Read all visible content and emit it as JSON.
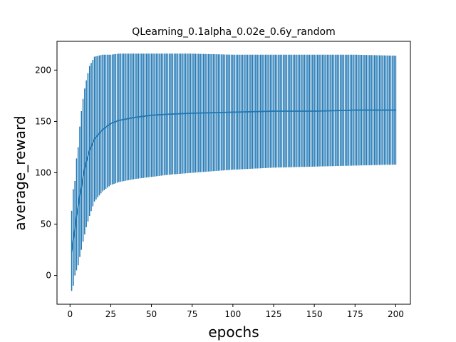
{
  "chart_data": {
    "type": "line",
    "title": "QLearning_0.1alpha_0.02e_0.6y_random",
    "xlabel": "epochs",
    "ylabel": "average_reward",
    "xlim": [
      -8,
      209
    ],
    "ylim": [
      -28,
      228
    ],
    "xticks": [
      "0",
      "25",
      "50",
      "75",
      "100",
      "125",
      "150",
      "175",
      "200"
    ],
    "yticks": [
      "0",
      "50",
      "100",
      "150",
      "200"
    ],
    "grid": false,
    "legend": "none",
    "series": [
      {
        "color": "#1f77b4",
        "error_bars": "vertical",
        "epochs": "1-200",
        "x_sampled": [
          1,
          2,
          3,
          4,
          5,
          6,
          7,
          8,
          9,
          10,
          12,
          15,
          20,
          25,
          30,
          40,
          50,
          60,
          75,
          100,
          125,
          150,
          175,
          200
        ],
        "mean_sampled": [
          23,
          35,
          45,
          58,
          67,
          78,
          86,
          96,
          104,
          111,
          122,
          133,
          142,
          148,
          151,
          154,
          156,
          157,
          158,
          159,
          160,
          160,
          161,
          161
        ],
        "lower_sampled": [
          -15,
          -10,
          0,
          5,
          10,
          18,
          25,
          33,
          40,
          47,
          58,
          72,
          82,
          88,
          91,
          94,
          96,
          98,
          100,
          103,
          105,
          106,
          107,
          108
        ],
        "upper_sampled": [
          63,
          84,
          92,
          114,
          125,
          145,
          160,
          172,
          182,
          190,
          204,
          213,
          215,
          215,
          216,
          216,
          216,
          216,
          216,
          215,
          215,
          215,
          215,
          214
        ]
      }
    ]
  }
}
